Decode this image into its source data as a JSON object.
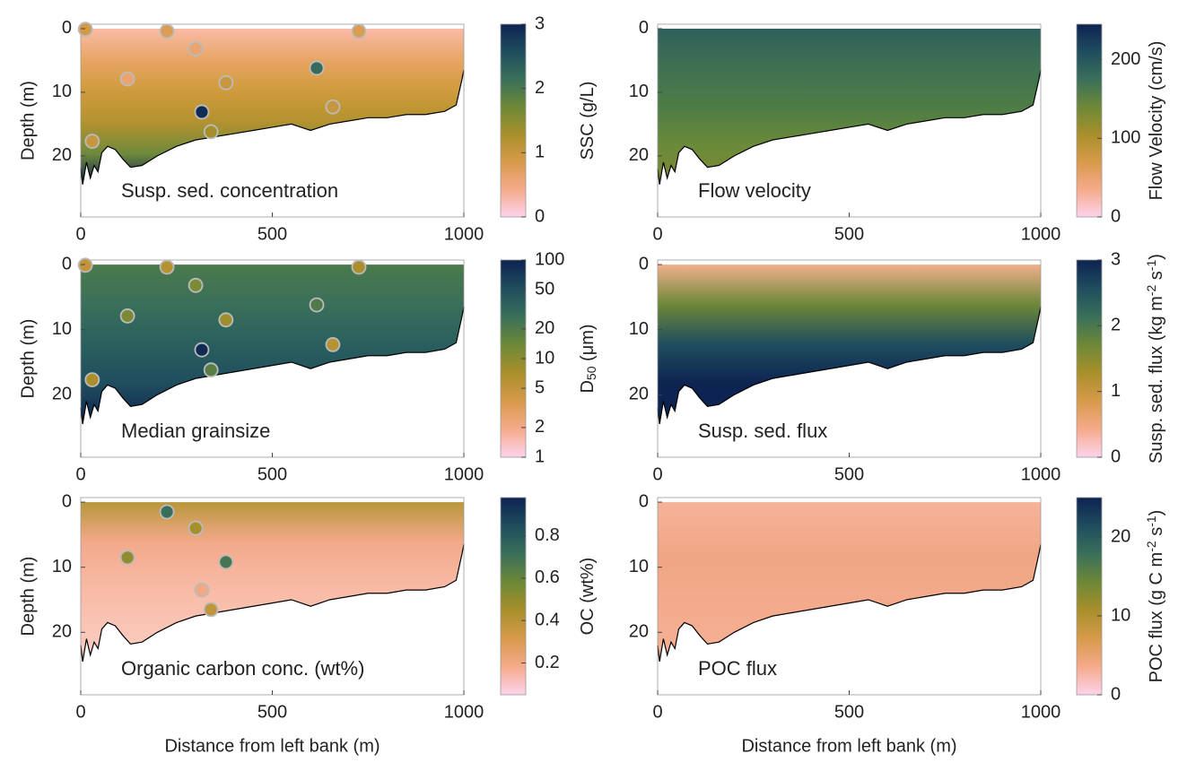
{
  "chart_data": [
    {
      "type": "contour",
      "annotation": "Susp. sed. concentration",
      "ylabel": "Depth (m)",
      "xlim": [
        0,
        1000
      ],
      "xticks": [
        0,
        500,
        1000
      ],
      "ylim": [
        -0.7,
        29.6
      ],
      "yticks": [
        0,
        10,
        20
      ],
      "y_reversed": true,
      "cbar_label": [
        {
          "text": "SSC (g/L)"
        }
      ],
      "cbar_lim": [
        0,
        3
      ],
      "cbar_ticks": [
        0,
        1,
        2,
        3
      ],
      "cbar_log": false,
      "colormap": [
        "#fcd3ec",
        "#f6aa8b",
        "#d79a4a",
        "#a88f2b",
        "#6d8838",
        "#3a6f5a",
        "#1f4d5e",
        "#0d2351"
      ],
      "field_colors": [
        "#f9bba6",
        "#e8a565",
        "#cf9b3c",
        "#b3922f",
        "#6f8a3c",
        "#0d2351"
      ],
      "samples": {
        "x": [
          12,
          225,
          300,
          122,
          726,
          616,
          379,
          658,
          316,
          340,
          30
        ],
        "depth": [
          0.1,
          0.4,
          3.2,
          7.9,
          0.4,
          6.2,
          8.5,
          12.3,
          13.1,
          16.2,
          17.7
        ],
        "values": [
          0.9,
          0.8,
          0.6,
          0.6,
          0.8,
          2.2,
          1.0,
          1.0,
          2.9,
          1.3,
          1.0
        ]
      },
      "bed": {
        "x": [
          0,
          5,
          15,
          25,
          35,
          45,
          55,
          70,
          90,
          110,
          130,
          160,
          200,
          250,
          300,
          350,
          400,
          450,
          500,
          550,
          600,
          650,
          700,
          750,
          800,
          850,
          900,
          950,
          980,
          995,
          1000
        ],
        "depth": [
          22,
          24.5,
          21,
          23.5,
          21.5,
          22.5,
          19.5,
          18.5,
          19,
          20.5,
          21.8,
          21.5,
          20,
          18.5,
          17.5,
          17,
          16.5,
          16,
          15.5,
          15,
          16,
          15,
          14.5,
          14,
          14,
          13.5,
          13.5,
          13,
          12,
          8,
          6.5
        ]
      }
    },
    {
      "type": "contour",
      "annotation": "Flow velocity",
      "xlim": [
        0,
        1000
      ],
      "xticks": [
        0,
        500,
        1000
      ],
      "ylim": [
        -0.7,
        29.6
      ],
      "yticks": [
        0,
        10,
        20
      ],
      "y_reversed": true,
      "cbar_label": [
        {
          "text": "Flow Velocity (cm/s)"
        }
      ],
      "cbar_lim": [
        0,
        245
      ],
      "cbar_ticks": [
        0,
        100,
        200
      ],
      "cbar_log": false,
      "colormap": [
        "#fcd3ec",
        "#f6aa8b",
        "#d79a4a",
        "#a88f2b",
        "#6d8838",
        "#3a6f5a",
        "#1f4d5e",
        "#0d2351"
      ],
      "field_colors": [
        "#2f5f5c",
        "#3f7152",
        "#4d7c47",
        "#6b8a3a",
        "#7f8a33"
      ],
      "bed": {
        "x": [
          0,
          5,
          15,
          25,
          35,
          45,
          55,
          70,
          90,
          110,
          130,
          160,
          200,
          250,
          300,
          350,
          400,
          450,
          500,
          550,
          600,
          650,
          700,
          750,
          800,
          850,
          900,
          950,
          980,
          995,
          1000
        ],
        "depth": [
          22,
          24.5,
          21,
          23.5,
          21.5,
          22.5,
          19.5,
          18.5,
          19,
          20.5,
          21.8,
          21.5,
          20,
          18.5,
          17.5,
          17,
          16.5,
          16,
          15.5,
          15,
          16,
          15,
          14.5,
          14,
          14,
          13.5,
          13.5,
          13,
          12,
          8,
          6.5
        ]
      }
    },
    {
      "type": "contour",
      "annotation": "Median grainsize",
      "ylabel": "Depth (m)",
      "xlim": [
        0,
        1000
      ],
      "xticks": [
        0,
        500,
        1000
      ],
      "ylim": [
        -0.7,
        29.6
      ],
      "yticks": [
        0,
        10,
        20
      ],
      "y_reversed": true,
      "cbar_label": [
        {
          "text": "D"
        },
        {
          "text": "50",
          "shift": "sub"
        },
        {
          "text": " (μm)"
        }
      ],
      "cbar_lim": [
        1,
        100
      ],
      "cbar_ticks": [
        1,
        2,
        5,
        10,
        20,
        50,
        100
      ],
      "cbar_log": true,
      "colormap": [
        "#fcd3ec",
        "#f6aa8b",
        "#d79a4a",
        "#a88f2b",
        "#6d8838",
        "#3a6f5a",
        "#1f4d5e",
        "#0d2351"
      ],
      "field_colors": [
        "#4c7a4c",
        "#3a6f5a",
        "#2a5f5e",
        "#1f4d5e",
        "#0d2351"
      ],
      "samples": {
        "x": [
          12,
          225,
          300,
          122,
          726,
          616,
          379,
          658,
          316,
          340,
          30
        ],
        "depth": [
          0.1,
          0.4,
          3.2,
          7.9,
          0.4,
          6.2,
          8.5,
          12.3,
          13.1,
          16.2,
          17.7
        ],
        "values": [
          5,
          6,
          12,
          12,
          7,
          20,
          8,
          6,
          90,
          18,
          7
        ]
      },
      "bed": {
        "x": [
          0,
          5,
          15,
          25,
          35,
          45,
          55,
          70,
          90,
          110,
          130,
          160,
          200,
          250,
          300,
          350,
          400,
          450,
          500,
          550,
          600,
          650,
          700,
          750,
          800,
          850,
          900,
          950,
          980,
          995,
          1000
        ],
        "depth": [
          22,
          24.5,
          21,
          23.5,
          21.5,
          22.5,
          19.5,
          18.5,
          19,
          20.5,
          21.8,
          21.5,
          20,
          18.5,
          17.5,
          17,
          16.5,
          16,
          15.5,
          15,
          16,
          15,
          14.5,
          14,
          14,
          13.5,
          13.5,
          13,
          12,
          8,
          6.5
        ]
      }
    },
    {
      "type": "contour",
      "annotation": "Susp. sed. flux",
      "xlim": [
        0,
        1000
      ],
      "xticks": [
        0,
        500,
        1000
      ],
      "ylim": [
        -0.7,
        29.6
      ],
      "yticks": [
        0,
        10,
        20
      ],
      "y_reversed": true,
      "cbar_label": [
        {
          "text": "Susp. sed. flux (kg m"
        },
        {
          "text": "-2",
          "shift": "super"
        },
        {
          "text": " s"
        },
        {
          "text": "-1",
          "shift": "super"
        },
        {
          "text": ")"
        }
      ],
      "cbar_lim": [
        0,
        3
      ],
      "cbar_ticks": [
        0,
        1,
        2,
        3
      ],
      "cbar_log": false,
      "colormap": [
        "#fcd3ec",
        "#f6aa8b",
        "#d79a4a",
        "#a88f2b",
        "#6d8838",
        "#3a6f5a",
        "#1f4d5e",
        "#0d2351"
      ],
      "field_colors": [
        "#f2b08c",
        "#6d8838",
        "#1f4d5e",
        "#0d2351",
        "#0d2351"
      ],
      "bed": {
        "x": [
          0,
          5,
          15,
          25,
          35,
          45,
          55,
          70,
          90,
          110,
          130,
          160,
          200,
          250,
          300,
          350,
          400,
          450,
          500,
          550,
          600,
          650,
          700,
          750,
          800,
          850,
          900,
          950,
          980,
          995,
          1000
        ],
        "depth": [
          22,
          24.5,
          21,
          23.5,
          21.5,
          22.5,
          19.5,
          18.5,
          19,
          20.5,
          21.8,
          21.5,
          20,
          18.5,
          17.5,
          17,
          16.5,
          16,
          15.5,
          15,
          16,
          15,
          14.5,
          14,
          14,
          13.5,
          13.5,
          13,
          12,
          8,
          6.5
        ]
      }
    },
    {
      "type": "contour",
      "annotation": "Organic carbon conc. (wt%)",
      "ylabel": "Depth (m)",
      "xlabel": "Distance from left bank (m)",
      "xlim": [
        0,
        1000
      ],
      "xticks": [
        0,
        500,
        1000
      ],
      "ylim": [
        -0.7,
        29.6
      ],
      "yticks": [
        0,
        10,
        20
      ],
      "y_reversed": true,
      "cbar_label": [
        {
          "text": "OC (wt%)"
        }
      ],
      "cbar_lim": [
        0.05,
        0.98
      ],
      "cbar_ticks": [
        0.2,
        0.4,
        0.6,
        0.8
      ],
      "cbar_log": false,
      "colormap": [
        "#fcd3ec",
        "#f6aa8b",
        "#d79a4a",
        "#a88f2b",
        "#6d8838",
        "#3a6f5a",
        "#1f4d5e",
        "#0d2351"
      ],
      "field_colors": [
        "#b8973a",
        "#f2a98a",
        "#f7b8a2",
        "#f9c4b4",
        "#fbcdc0"
      ],
      "samples": {
        "x": [
          225,
          300,
          122,
          379,
          316,
          340
        ],
        "depth": [
          1.5,
          4,
          8.5,
          9.2,
          13.5,
          16.5
        ],
        "values": [
          0.72,
          0.45,
          0.5,
          0.68,
          0.2,
          0.38
        ]
      },
      "bed": {
        "x": [
          0,
          5,
          15,
          25,
          35,
          45,
          55,
          70,
          90,
          110,
          130,
          160,
          200,
          250,
          300,
          350,
          400,
          450,
          500,
          550,
          600,
          650,
          700,
          750,
          800,
          850,
          900,
          950,
          980,
          995,
          1000
        ],
        "depth": [
          22,
          24.5,
          21,
          23.5,
          21.5,
          22.5,
          19.5,
          18.5,
          19,
          20.5,
          21.8,
          21.5,
          20,
          18.5,
          17.5,
          17,
          16.5,
          16,
          15.5,
          15,
          16,
          15,
          14.5,
          14,
          14,
          13.5,
          13.5,
          13,
          12,
          8,
          6.5
        ]
      }
    },
    {
      "type": "contour",
      "annotation": "POC flux",
      "xlabel": "Distance from left bank (m)",
      "xlim": [
        0,
        1000
      ],
      "xticks": [
        0,
        500,
        1000
      ],
      "ylim": [
        -0.7,
        29.6
      ],
      "yticks": [
        0,
        10,
        20
      ],
      "y_reversed": true,
      "cbar_label": [
        {
          "text": "POC flux (g C m"
        },
        {
          "text": "-2",
          "shift": "super"
        },
        {
          "text": " s"
        },
        {
          "text": "-1",
          "shift": "super"
        },
        {
          "text": ")"
        }
      ],
      "cbar_lim": [
        0,
        25
      ],
      "cbar_ticks": [
        0,
        10,
        20
      ],
      "cbar_log": false,
      "colormap": [
        "#fcd3ec",
        "#f6aa8b",
        "#d79a4a",
        "#a88f2b",
        "#6d8838",
        "#3a6f5a",
        "#1f4d5e",
        "#0d2351"
      ],
      "field_colors": [
        "#f6b39a",
        "#f0a684",
        "#f3ab8c",
        "#f5b196"
      ],
      "bed": {
        "x": [
          0,
          5,
          15,
          25,
          35,
          45,
          55,
          70,
          90,
          110,
          130,
          160,
          200,
          250,
          300,
          350,
          400,
          450,
          500,
          550,
          600,
          650,
          700,
          750,
          800,
          850,
          900,
          950,
          980,
          995,
          1000
        ],
        "depth": [
          22,
          24.5,
          21,
          23.5,
          21.5,
          22.5,
          19.5,
          18.5,
          19,
          20.5,
          21.8,
          21.5,
          20,
          18.5,
          17.5,
          17,
          16.5,
          16,
          15.5,
          15,
          16,
          15,
          14.5,
          14,
          14,
          13.5,
          13.5,
          13,
          12,
          8,
          6.5
        ]
      }
    }
  ]
}
